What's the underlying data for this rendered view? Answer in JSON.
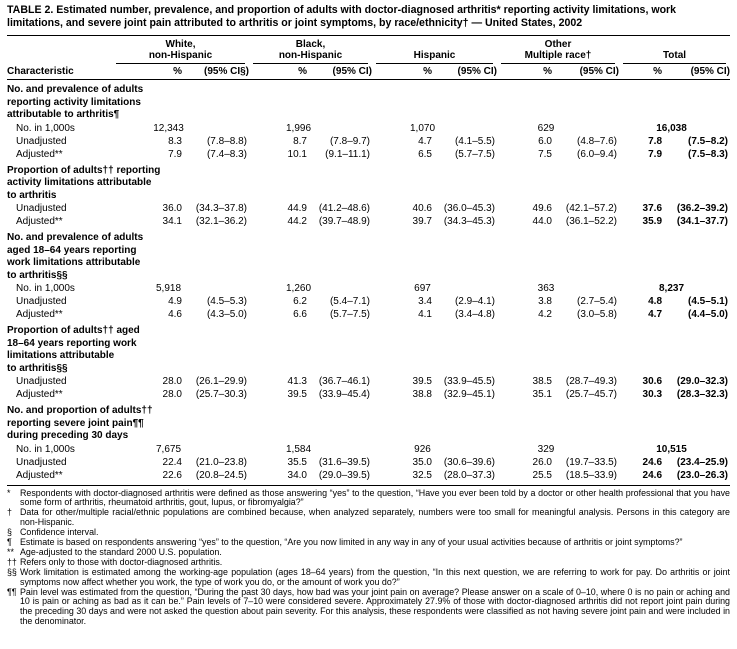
{
  "title": "TABLE 2. Estimated number, prevalence, and proportion of adults with doctor-diagnosed arthritis* reporting activity limitations, work limitations, and severe joint pain attributed to arthritis or joint symptoms, by race/ethnicity† — United States, 2002",
  "table": {
    "characteristic_header": "Characteristic",
    "groups": [
      {
        "name": "White,\nnon-Hispanic",
        "pct_label": "%",
        "ci_label": "(95% CI§)"
      },
      {
        "name": "Black,\nnon-Hispanic",
        "pct_label": "%",
        "ci_label": "(95% CI)"
      },
      {
        "name": "Hispanic",
        "pct_label": "%",
        "ci_label": "(95% CI)"
      },
      {
        "name": "Other\nMultiple race†",
        "pct_label": "%",
        "ci_label": "(95% CI)"
      },
      {
        "name": "Total",
        "pct_label": "%",
        "ci_label": "(95% CI)"
      }
    ],
    "sections": [
      {
        "label": "No. and prevalence of adults\nreporting  activity limitations\nattributable to arthritis¶",
        "rows": [
          {
            "label": "No. in 1,000s",
            "type": "count",
            "values": [
              "12,343",
              "1,996",
              "1,070",
              "629",
              "16,038"
            ]
          },
          {
            "label": "Unadjusted",
            "type": "pct",
            "values": [
              [
                "8.3",
                "(7.8–8.8)"
              ],
              [
                "8.7",
                "(7.8–9.7)"
              ],
              [
                "4.7",
                "(4.1–5.5)"
              ],
              [
                "6.0",
                "(4.8–7.6)"
              ],
              [
                "7.8",
                "(7.5–8.2)"
              ]
            ]
          },
          {
            "label": "Adjusted**",
            "type": "pct",
            "values": [
              [
                "7.9",
                "(7.4–8.3)"
              ],
              [
                "10.1",
                "(9.1–11.1)"
              ],
              [
                "6.5",
                "(5.7–7.5)"
              ],
              [
                "7.5",
                "(6.0–9.4)"
              ],
              [
                "7.9",
                "(7.5–8.3)"
              ]
            ]
          }
        ]
      },
      {
        "label": "Proportion of adults†† reporting\nactivity limitations attributable\nto arthritis",
        "rows": [
          {
            "label": "Unadjusted",
            "type": "pct",
            "values": [
              [
                "36.0",
                "(34.3–37.8)"
              ],
              [
                "44.9",
                "(41.2–48.6)"
              ],
              [
                "40.6",
                "(36.0–45.3)"
              ],
              [
                "49.6",
                "(42.1–57.2)"
              ],
              [
                "37.6",
                "(36.2–39.2)"
              ]
            ]
          },
          {
            "label": "Adjusted**",
            "type": "pct",
            "values": [
              [
                "34.1",
                "(32.1–36.2)"
              ],
              [
                "44.2",
                "(39.7–48.9)"
              ],
              [
                "39.7",
                "(34.3–45.3)"
              ],
              [
                "44.0",
                "(36.1–52.2)"
              ],
              [
                "35.9",
                "(34.1–37.7)"
              ]
            ]
          }
        ]
      },
      {
        "label": "No. and prevalence of adults\naged 18–64 years reporting\nwork limitations attributable\nto arthritis§§",
        "rows": [
          {
            "label": "No. in 1,000s",
            "type": "count",
            "values": [
              "5,918",
              "1,260",
              "697",
              "363",
              "8,237"
            ]
          },
          {
            "label": "Unadjusted",
            "type": "pct",
            "values": [
              [
                "4.9",
                "(4.5–5.3)"
              ],
              [
                "6.2",
                "(5.4–7.1)"
              ],
              [
                "3.4",
                "(2.9–4.1)"
              ],
              [
                "3.8",
                "(2.7–5.4)"
              ],
              [
                "4.8",
                "(4.5–5.1)"
              ]
            ]
          },
          {
            "label": "Adjusted**",
            "type": "pct",
            "values": [
              [
                "4.6",
                "(4.3–5.0)"
              ],
              [
                "6.6",
                "(5.7–7.5)"
              ],
              [
                "4.1",
                "(3.4–4.8)"
              ],
              [
                "4.2",
                "(3.0–5.8)"
              ],
              [
                "4.7",
                "(4.4–5.0)"
              ]
            ]
          }
        ]
      },
      {
        "label": "Proportion of adults†† aged\n18–64 years reporting work\nlimitations attributable\nto arthritis§§",
        "rows": [
          {
            "label": "Unadjusted",
            "type": "pct",
            "values": [
              [
                "28.0",
                "(26.1–29.9)"
              ],
              [
                "41.3",
                "(36.7–46.1)"
              ],
              [
                "39.5",
                "(33.9–45.5)"
              ],
              [
                "38.5",
                "(28.7–49.3)"
              ],
              [
                "30.6",
                "(29.0–32.3)"
              ]
            ]
          },
          {
            "label": "Adjusted**",
            "type": "pct",
            "values": [
              [
                "28.0",
                "(25.7–30.3)"
              ],
              [
                "39.5",
                "(33.9–45.4)"
              ],
              [
                "38.8",
                "(32.9–45.1)"
              ],
              [
                "35.1",
                "(25.7–45.7)"
              ],
              [
                "30.3",
                "(28.3–32.3)"
              ]
            ]
          }
        ]
      },
      {
        "label": "No. and proportion of adults††\nreporting severe joint pain¶¶\nduring preceding 30 days",
        "rows": [
          {
            "label": "No. in 1,000s",
            "type": "count",
            "values": [
              "7,675",
              "1,584",
              "926",
              "329",
              "10,515"
            ]
          },
          {
            "label": "Unadjusted",
            "type": "pct",
            "values": [
              [
                "22.4",
                "(21.0–23.8)"
              ],
              [
                "35.5",
                "(31.6–39.5)"
              ],
              [
                "35.0",
                "(30.6–39.6)"
              ],
              [
                "26.0",
                "(19.7–33.5)"
              ],
              [
                "24.6",
                "(23.4–25.9)"
              ]
            ]
          },
          {
            "label": "Adjusted**",
            "type": "pct",
            "values": [
              [
                "22.6",
                "(20.8–24.5)"
              ],
              [
                "34.0",
                "(29.0–39.5)"
              ],
              [
                "32.5",
                "(28.0–37.3)"
              ],
              [
                "25.5",
                "(18.5–33.9)"
              ],
              [
                "24.6",
                "(23.0–26.3)"
              ]
            ]
          }
        ]
      }
    ]
  },
  "footnotes": [
    {
      "marker": "*",
      "text": "Respondents with doctor-diagnosed arthritis were defined as those answering “yes” to the question, “Have you ever been told by a doctor or other health professional that you have some form of arthritis, rheumatoid arthritis, gout, lupus, or fibromyalgia?”"
    },
    {
      "marker": "†",
      "text": "Data for other/multiple racial/ethnic populations are combined because, when analyzed separately, numbers were too small for meaningful analysis. Persons in this category are non-Hispanic."
    },
    {
      "marker": "§",
      "text": "Confidence interval."
    },
    {
      "marker": "¶",
      "text": "Estimate is based on respondents answering “yes” to the question, “Are you now limited in any way in any of your usual activities because of arthritis or joint symptoms?”"
    },
    {
      "marker": "**",
      "text": "Age-adjusted to the standard 2000 U.S. population."
    },
    {
      "marker": "††",
      "text": "Refers only to those with doctor-diagnosed arthritis."
    },
    {
      "marker": "§§",
      "text": "Work limitation is estimated among the working-age population (ages 18–64 years) from the question, “In this next question, we are referring to work for pay. Do arthritis or joint symptoms now affect whether you work, the type of work you do, or the amount of work you do?”"
    },
    {
      "marker": "¶¶",
      "text": "Pain level was estimated from the question, “During the past 30 days, how bad was your joint pain on average? Please answer on a scale of 0–10, where 0 is no pain or aching and 10 is pain or aching as bad as it can be.” Pain levels of 7–10 were considered severe. Approximately 27.9% of those with doctor-diagnosed arthritis did not report joint pain during the preceding 30 days and were not asked the question about pain severity. For this analysis, these respondents were classified as not having severe joint pain and were included in the denominator."
    }
  ]
}
